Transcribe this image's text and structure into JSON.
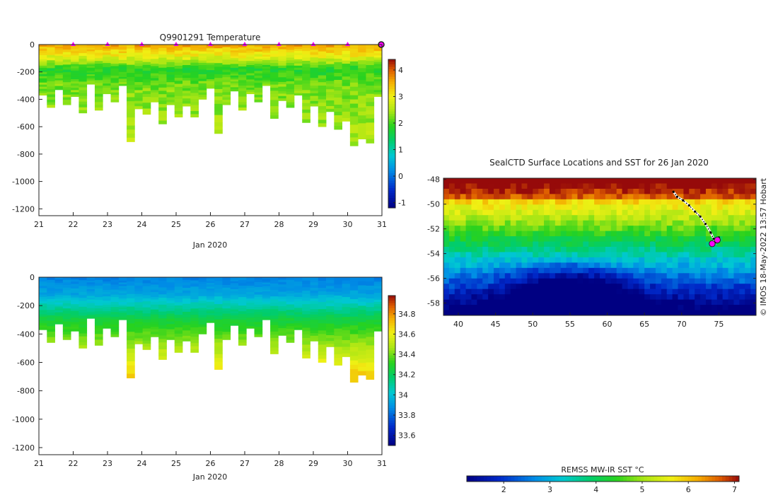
{
  "chart_data": [
    {
      "type": "heatmap",
      "title": "Q9901291  Temperature",
      "xlabel": "Jan 2020",
      "ylabel": "",
      "x_ticks": [
        21,
        22,
        23,
        24,
        25,
        26,
        27,
        28,
        29,
        30,
        31
      ],
      "xlim": [
        21,
        31
      ],
      "y_ticks": [
        0,
        -200,
        -400,
        -600,
        -800,
        -1000,
        -1200
      ],
      "ylim": [
        -1250,
        0
      ],
      "colorbar": {
        "label": "",
        "ticks": [
          4,
          3,
          2,
          1,
          0,
          -1
        ],
        "range": [
          -1.2,
          4.4
        ]
      },
      "surface_markers": [
        22,
        23,
        24,
        25,
        26,
        27,
        28,
        29,
        30
      ],
      "profile_max_depths": [
        370,
        460,
        330,
        440,
        380,
        500,
        290,
        480,
        360,
        420,
        300,
        710,
        470,
        510,
        420,
        580,
        440,
        530,
        450,
        530,
        400,
        320,
        650,
        440,
        340,
        480,
        360,
        420,
        300,
        540,
        410,
        460,
        370,
        570,
        450,
        600,
        490,
        620,
        560,
        740,
        690,
        720,
        380
      ],
      "surface_value": 3.6,
      "deep_value": 2.3
    },
    {
      "type": "heatmap",
      "title": "",
      "xlabel": "Jan 2020",
      "ylabel": "",
      "x_ticks": [
        21,
        22,
        23,
        24,
        25,
        26,
        27,
        28,
        29,
        30,
        31
      ],
      "xlim": [
        21,
        31
      ],
      "y_ticks": [
        0,
        -200,
        -400,
        -600,
        -800,
        -1000,
        -1200
      ],
      "ylim": [
        -1250,
        0
      ],
      "colorbar": {
        "label": "",
        "ticks": [
          34.8,
          34.6,
          34.4,
          34.2,
          34,
          33.8,
          33.6
        ],
        "range": [
          33.5,
          34.98
        ]
      },
      "profile_max_depths": [
        370,
        460,
        330,
        440,
        380,
        500,
        290,
        480,
        360,
        420,
        300,
        710,
        470,
        510,
        420,
        580,
        440,
        530,
        450,
        530,
        400,
        320,
        650,
        440,
        340,
        480,
        360,
        420,
        300,
        540,
        410,
        460,
        370,
        570,
        450,
        600,
        490,
        620,
        560,
        740,
        690,
        720,
        380
      ],
      "surface_value": 33.85,
      "deep_value": 34.6
    },
    {
      "type": "heatmap",
      "title": "SealCTD Surface Locations and SST for 26 Jan 2020",
      "xlabel": "",
      "ylabel": "",
      "x_ticks": [
        40,
        45,
        50,
        55,
        60,
        65,
        70,
        75
      ],
      "xlim": [
        38,
        80
      ],
      "y_ticks": [
        -48,
        -50,
        -52,
        -54,
        -56,
        -58
      ],
      "ylim": [
        -59,
        -47.9
      ],
      "colorbar": {
        "label": "REMSS MW-IR SST °C",
        "ticks": [
          2,
          3,
          4,
          5,
          6,
          7
        ],
        "range": [
          1.2,
          7.1
        ]
      },
      "track": [
        [
          68.9,
          -49.0
        ],
        [
          69.4,
          -49.4
        ],
        [
          70.2,
          -49.7
        ],
        [
          71.0,
          -50.1
        ],
        [
          71.8,
          -50.6
        ],
        [
          72.5,
          -51.0
        ],
        [
          73.2,
          -51.6
        ],
        [
          73.9,
          -52.3
        ],
        [
          74.3,
          -52.8
        ],
        [
          74.6,
          -53.1
        ],
        [
          75.0,
          -52.7
        ]
      ],
      "highlight_points": [
        [
          74.8,
          -52.9
        ],
        [
          74.1,
          -53.2
        ]
      ],
      "credit": "© IMOS 18-May-2022 13:57 Hobart"
    }
  ]
}
